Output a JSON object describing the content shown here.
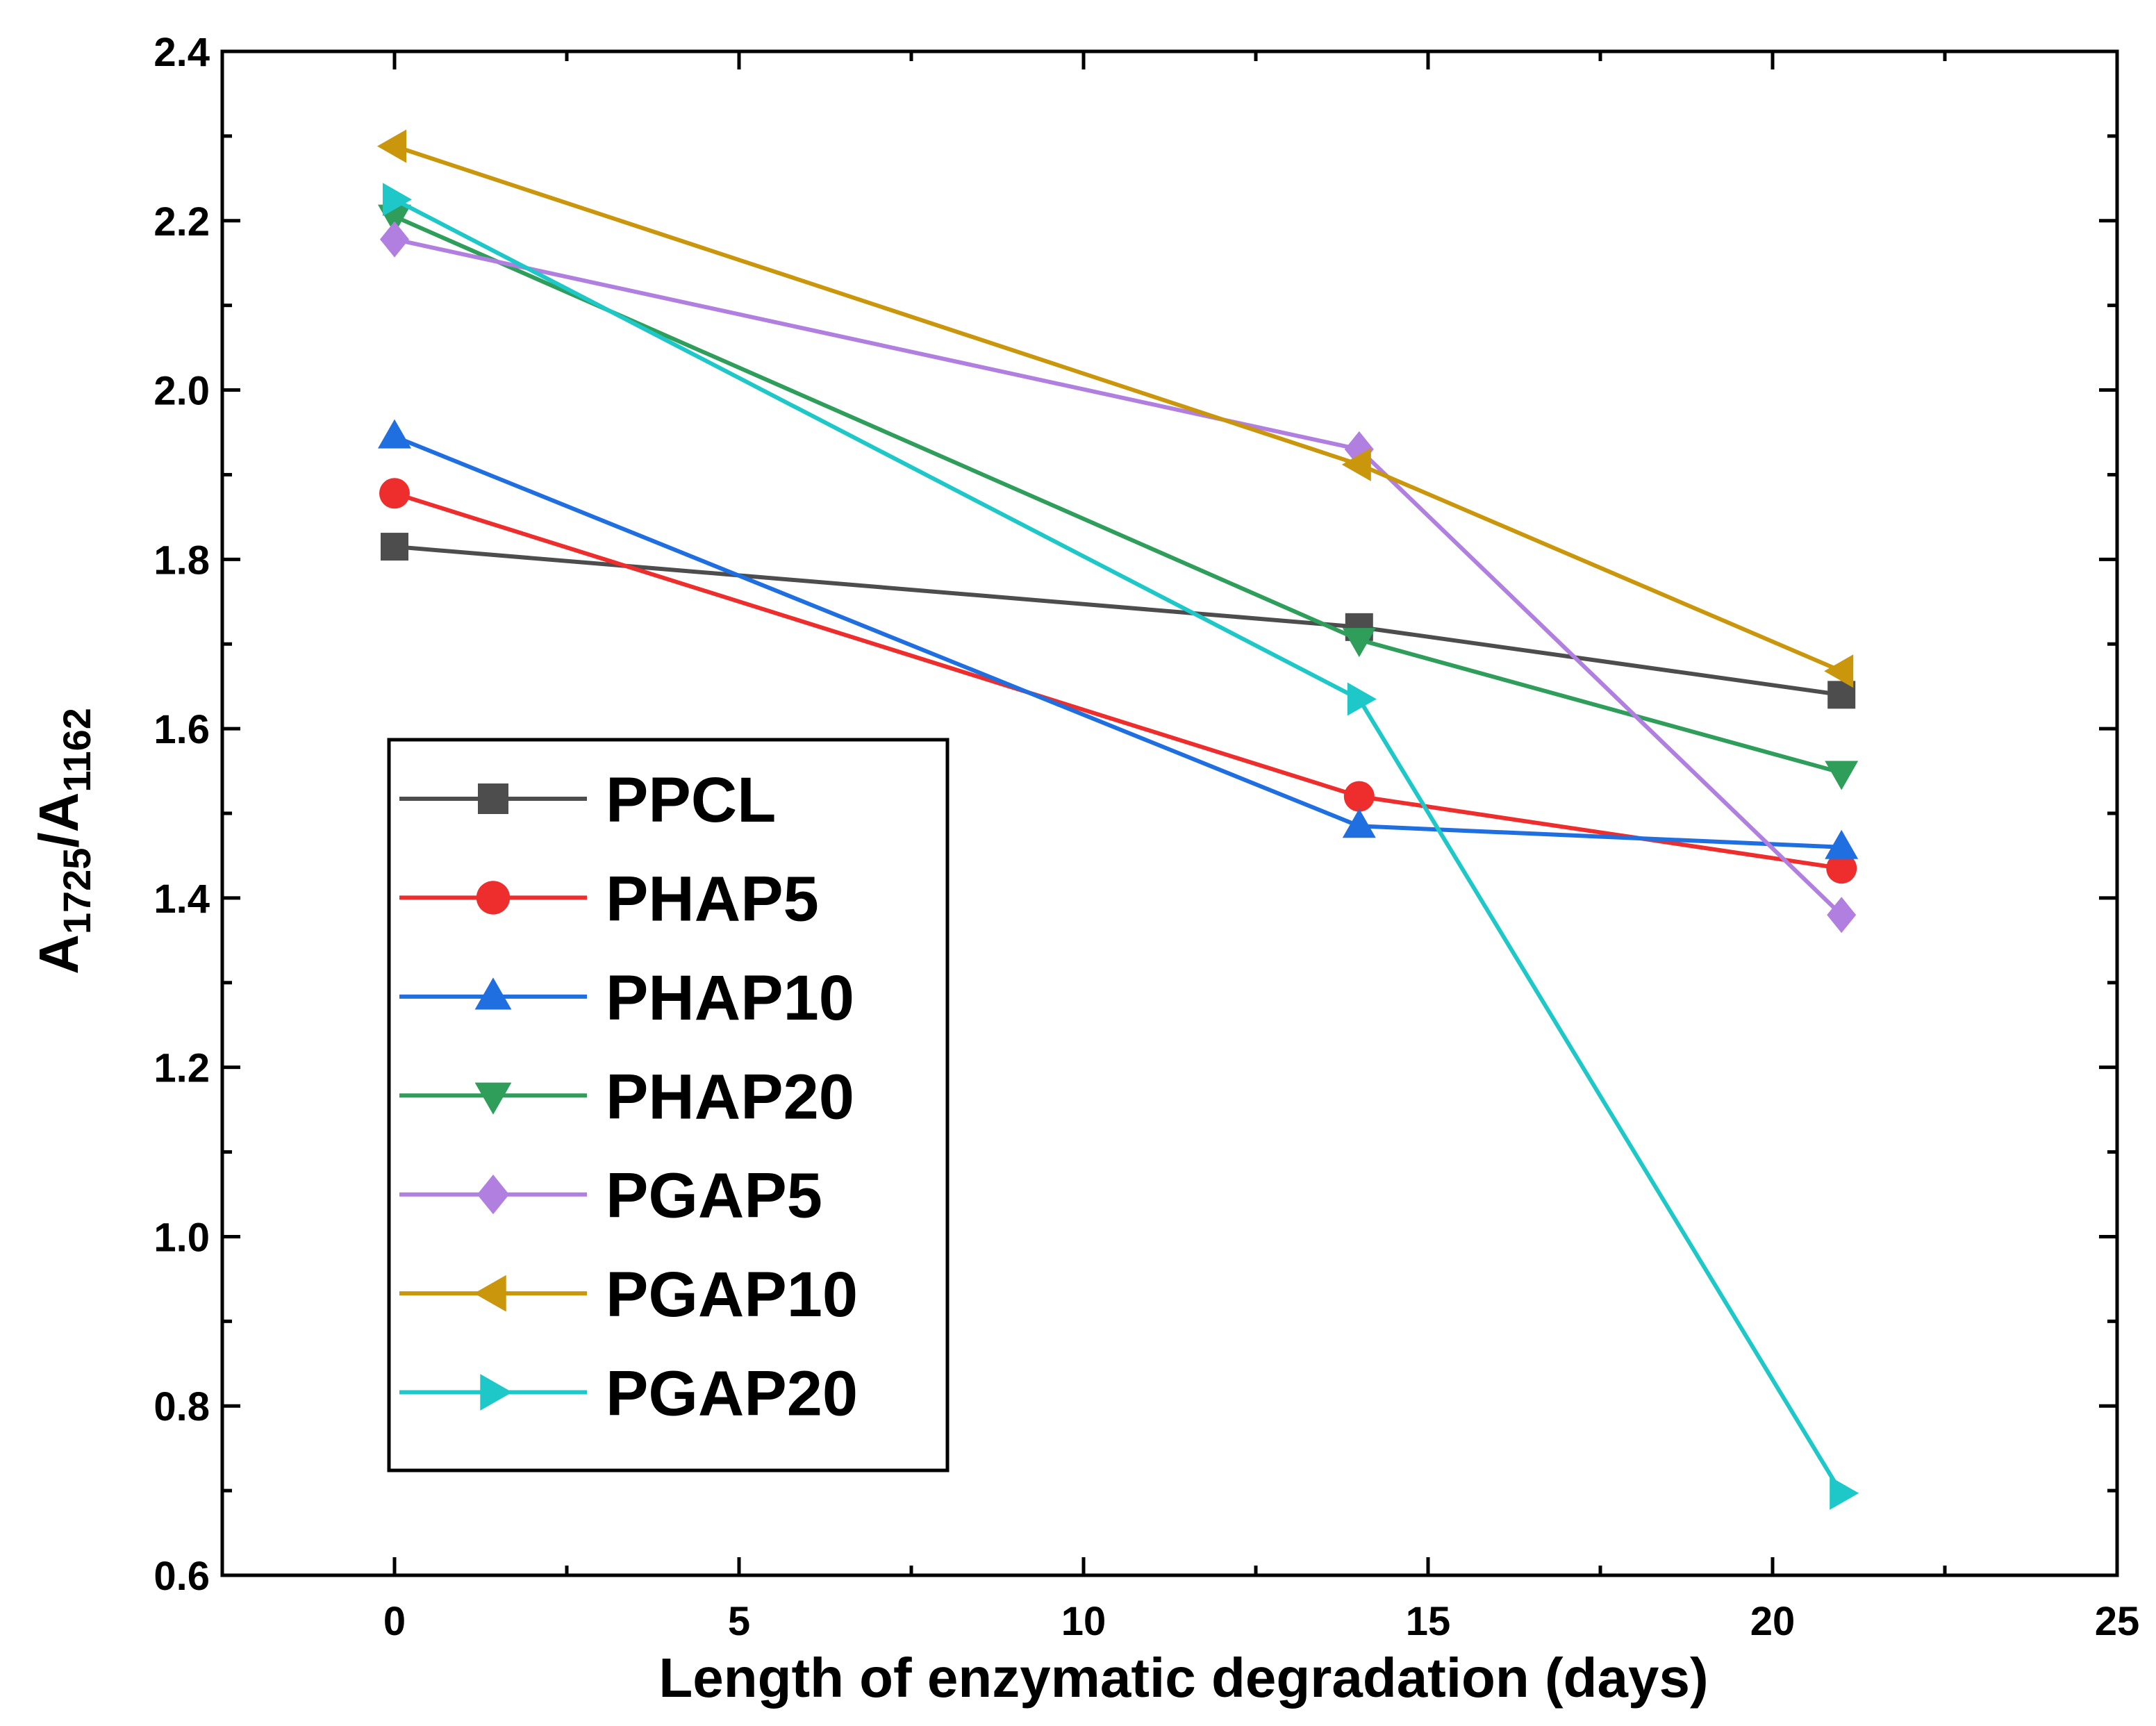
{
  "chart_data": {
    "type": "line",
    "xlabel": "Length of enzymatic degradation (days)",
    "ylabel": {
      "main": "A",
      "sub1": "1725",
      "sep": "/A",
      "sub2": "1162"
    },
    "xlim": [
      -2.5,
      25
    ],
    "ylim": [
      0.6,
      2.4
    ],
    "x_ticks": [
      0,
      5,
      10,
      15,
      20,
      25
    ],
    "x_tick_labels": [
      "0",
      "5",
      "10",
      "15",
      "20",
      "25"
    ],
    "x_minor_ticks": [
      2.5,
      7.5,
      12.5,
      17.5,
      22.5
    ],
    "y_ticks": [
      0.6,
      0.8,
      1.0,
      1.2,
      1.4,
      1.6,
      1.8,
      2.0,
      2.2,
      2.4
    ],
    "y_tick_labels": [
      "0.6",
      "0.8",
      "1.0",
      "1.2",
      "1.4",
      "1.6",
      "1.8",
      "2.0",
      "2.2",
      "2.4"
    ],
    "y_minor_ticks": [
      0.7,
      0.9,
      1.1,
      1.3,
      1.5,
      1.7,
      1.9,
      2.1,
      2.3
    ],
    "grid": false,
    "legend_position": "left",
    "x": [
      0,
      14,
      21
    ],
    "series": [
      {
        "name": "PPCL",
        "values": [
          1.815,
          1.72,
          1.64
        ],
        "color": "#4d4d4d",
        "marker": "square"
      },
      {
        "name": "PHAP5",
        "values": [
          1.878,
          1.52,
          1.435
        ],
        "color": "#ee2d2d",
        "marker": "circle"
      },
      {
        "name": "PHAP10",
        "values": [
          1.945,
          1.485,
          1.46
        ],
        "color": "#1f6fe0",
        "marker": "triangle-up"
      },
      {
        "name": "PHAP20",
        "values": [
          2.205,
          1.705,
          1.548
        ],
        "color": "#2f9e5b",
        "marker": "triangle-down"
      },
      {
        "name": "PGAP5",
        "values": [
          2.178,
          1.93,
          1.38
        ],
        "color": "#b07fe0",
        "marker": "diamond"
      },
      {
        "name": "PGAP10",
        "values": [
          2.288,
          1.912,
          1.668
        ],
        "color": "#c9960c",
        "marker": "triangle-left"
      },
      {
        "name": "PGAP20",
        "values": [
          2.225,
          1.635,
          0.697
        ],
        "color": "#1ec8c8",
        "marker": "triangle-right"
      }
    ]
  }
}
